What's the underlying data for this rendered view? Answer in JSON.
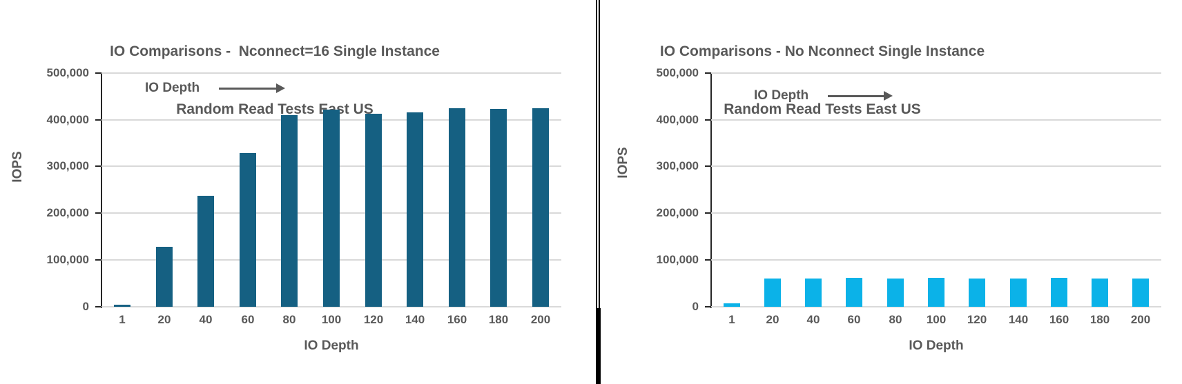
{
  "colors": {
    "text": "#595959",
    "grid": "#D9D9D9",
    "axis": "#262626",
    "divider": "#000000",
    "background": "#FFFFFF"
  },
  "chart_data": [
    {
      "type": "bar",
      "title_lines": [
        "IO Comparisons -  Nconnect=16 Single Instance",
        "Random Read Tests East US"
      ],
      "categories": [
        "1",
        "20",
        "40",
        "60",
        "80",
        "100",
        "120",
        "140",
        "160",
        "180",
        "200"
      ],
      "values": [
        5000,
        128000,
        238000,
        330000,
        410000,
        423000,
        414000,
        417000,
        426000,
        424000,
        426000
      ],
      "xlabel": "IO Depth",
      "ylabel": "IOPS",
      "ylim": [
        0,
        500000
      ],
      "ytick_labels": [
        "0",
        "100,000",
        "200,000",
        "300,000",
        "400,000",
        "500,000"
      ],
      "grid": true,
      "legend": "none",
      "annotation_text": "IO Depth",
      "bar_color": "#156082"
    },
    {
      "type": "bar",
      "title_lines": [
        "IO Comparisons - No Nconnect Single Instance",
        "Random Read Tests East US"
      ],
      "categories": [
        "1",
        "20",
        "40",
        "60",
        "80",
        "100",
        "120",
        "140",
        "160",
        "180",
        "200"
      ],
      "values": [
        7000,
        60000,
        60000,
        62000,
        60000,
        62000,
        60000,
        60000,
        62000,
        60000,
        60000
      ],
      "xlabel": "IO Depth",
      "ylabel": "IOPS",
      "ylim": [
        0,
        500000
      ],
      "ytick_labels": [
        "0",
        "100,000",
        "200,000",
        "300,000",
        "400,000",
        "500,000"
      ],
      "grid": true,
      "legend": "none",
      "annotation_text": "IO Depth",
      "bar_color": "#0BB2E8"
    }
  ]
}
